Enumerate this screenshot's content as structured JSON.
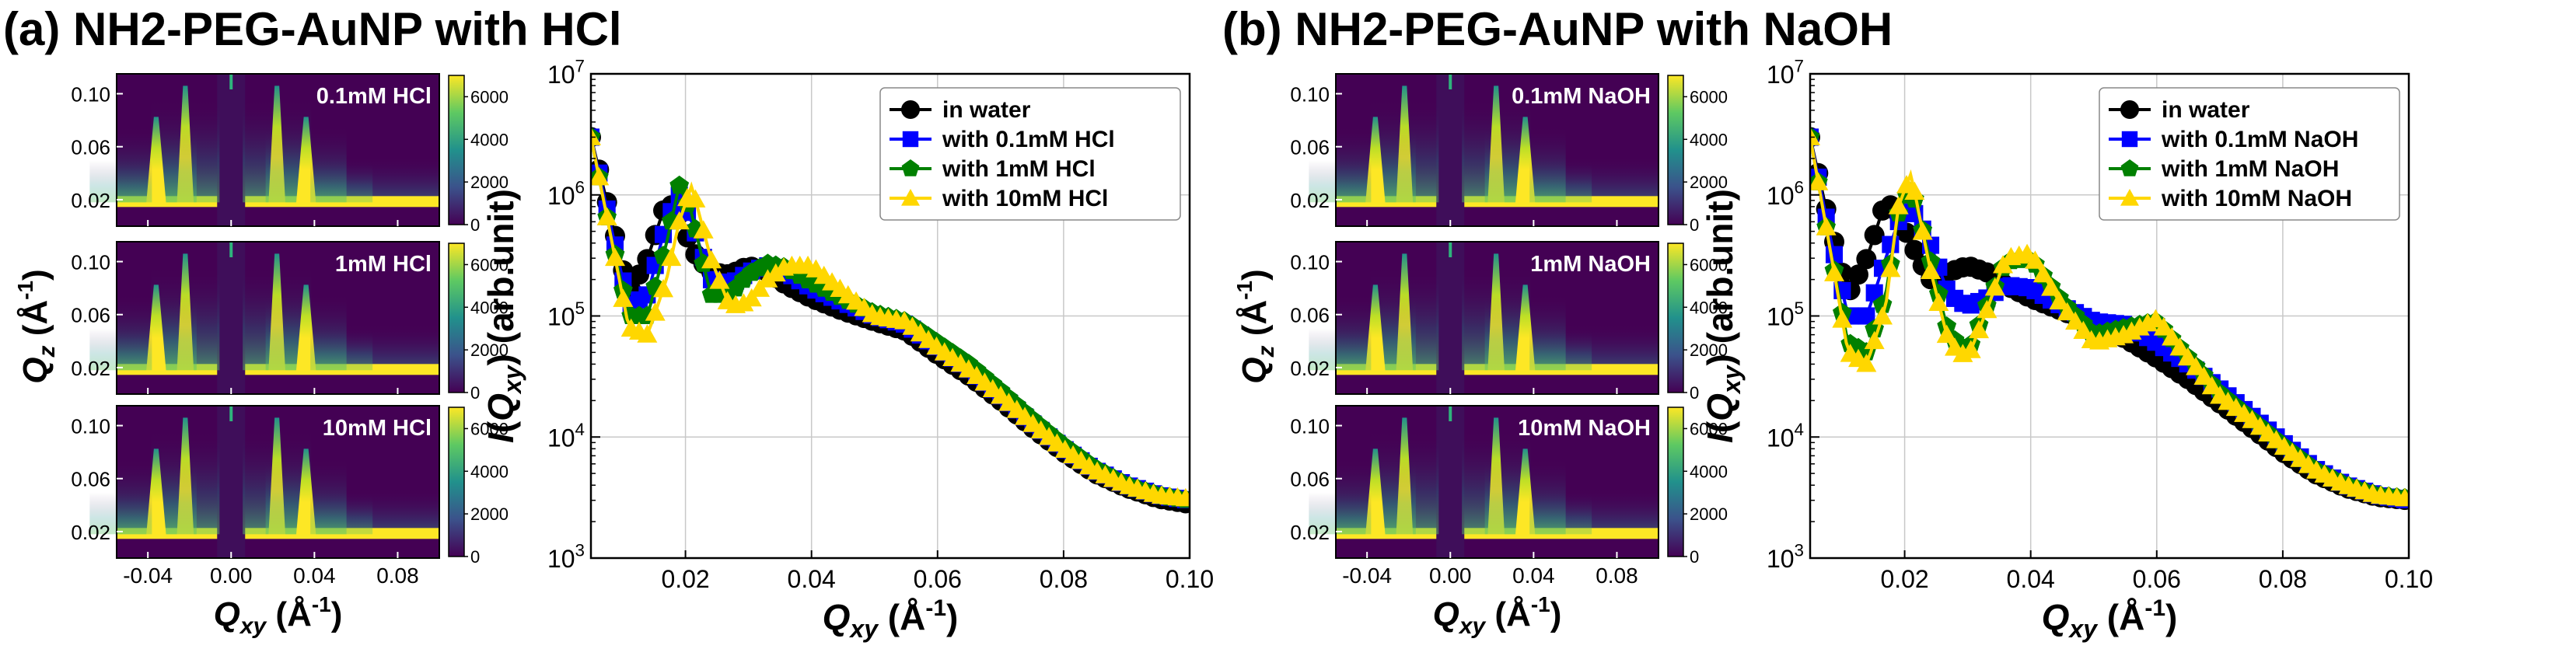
{
  "chart_data": [
    {
      "panel": "a",
      "title": "(a) NH2-PEG-AuNP with HCl",
      "maps": {
        "type": "heatmap",
        "xlabel": "Q_xy (Å^-1)",
        "ylabel": "Q_z (Å^-1)",
        "x_range": [
          -0.055,
          0.1
        ],
        "y_range": [
          0.0,
          0.115
        ],
        "x_ticks": [
          "-0.04",
          "0.00",
          "0.04",
          "0.08"
        ],
        "y_ticks": [
          "0.02",
          "0.06",
          "0.10"
        ],
        "colorbar_ticks": [
          "0",
          "2000",
          "4000",
          "6000"
        ],
        "colorbar_range": [
          0,
          7000
        ],
        "peaks_q": [
          0.022,
          0.036,
          0.053
        ],
        "labels": [
          "0.1mM HCl",
          "1mM HCl",
          "10mM HCl"
        ]
      },
      "plot": {
        "type": "line",
        "xlabel": "Q_xy (Å^-1)",
        "ylabel": "I(Q_xy) (arb.unit)",
        "xlim": [
          0.005,
          0.1
        ],
        "ylim": [
          1000,
          10000000
        ],
        "x_ticks": [
          "0.02",
          "0.04",
          "0.06",
          "0.08",
          "0.10"
        ],
        "y_ticks": [
          "10^3",
          "10^4",
          "10^5",
          "10^6",
          "10^7"
        ],
        "legend": "top-right",
        "series": [
          {
            "name": "in water",
            "color": "#000000",
            "marker": "circle",
            "x": [
              0.005,
              0.008,
              0.011,
              0.014,
              0.017,
              0.019,
              0.021,
              0.024,
              0.027,
              0.03,
              0.033,
              0.036,
              0.04,
              0.045,
              0.05,
              0.055,
              0.06,
              0.065,
              0.07,
              0.075,
              0.08,
              0.085,
              0.09,
              0.095,
              0.1
            ],
            "y": [
              3000000,
              700000,
              150000,
              300000,
              900000,
              700000,
              350000,
              230000,
              220000,
              260000,
              230000,
              180000,
              140000,
              110000,
              90000,
              75000,
              48000,
              32000,
              20000,
              12000,
              7500,
              5000,
              3800,
              3100,
              2800
            ]
          },
          {
            "name": "with 0.1mM HCl",
            "color": "#0000ff",
            "marker": "square",
            "x": [
              0.005,
              0.008,
              0.011,
              0.014,
              0.017,
              0.019,
              0.021,
              0.024,
              0.027,
              0.03,
              0.033,
              0.036,
              0.04,
              0.045,
              0.05,
              0.055,
              0.06,
              0.065,
              0.07,
              0.075,
              0.08,
              0.085,
              0.09,
              0.095,
              0.1
            ],
            "y": [
              3000000,
              600000,
              120000,
              150000,
              600000,
              1000000,
              600000,
              200000,
              180000,
              230000,
              260000,
              230000,
              170000,
              130000,
              100000,
              85000,
              55000,
              36000,
              22000,
              13000,
              8000,
              5300,
              4000,
              3300,
              3000
            ]
          },
          {
            "name": "with 1mM HCl",
            "color": "#008000",
            "marker": "pentagon",
            "x": [
              0.005,
              0.008,
              0.011,
              0.014,
              0.017,
              0.019,
              0.021,
              0.024,
              0.027,
              0.03,
              0.033,
              0.036,
              0.04,
              0.045,
              0.05,
              0.055,
              0.06,
              0.065,
              0.07,
              0.075,
              0.08,
              0.085,
              0.09,
              0.095,
              0.1
            ],
            "y": [
              3000000,
              500000,
              100000,
              100000,
              400000,
              1200000,
              700000,
              150000,
              150000,
              220000,
              270000,
              250000,
              190000,
              140000,
              105000,
              90000,
              60000,
              40000,
              24000,
              14000,
              8500,
              5500,
              4000,
              3300,
              3000
            ]
          },
          {
            "name": "with 10mM HCl",
            "color": "#ffd700",
            "marker": "triangle",
            "x": [
              0.005,
              0.008,
              0.011,
              0.014,
              0.017,
              0.019,
              0.021,
              0.024,
              0.027,
              0.03,
              0.033,
              0.036,
              0.04,
              0.045,
              0.05,
              0.055,
              0.06,
              0.065,
              0.07,
              0.075,
              0.08,
              0.085,
              0.09,
              0.095,
              0.1
            ],
            "y": [
              3000000,
              500000,
              80000,
              70000,
              200000,
              600000,
              1200000,
              300000,
              120000,
              130000,
              200000,
              260000,
              260000,
              160000,
              100000,
              90000,
              55000,
              36000,
              22000,
              13000,
              8000,
              5300,
              4000,
              3300,
              3100
            ]
          }
        ]
      }
    },
    {
      "panel": "b",
      "title": "(b) NH2-PEG-AuNP with NaOH",
      "maps": {
        "type": "heatmap",
        "xlabel": "Q_xy (Å^-1)",
        "ylabel": "Q_z (Å^-1)",
        "x_range": [
          -0.055,
          0.1
        ],
        "y_range": [
          0.0,
          0.115
        ],
        "x_ticks": [
          "-0.04",
          "0.00",
          "0.04",
          "0.08"
        ],
        "y_ticks": [
          "0.02",
          "0.06",
          "0.10"
        ],
        "colorbar_ticks": [
          "0",
          "2000",
          "4000",
          "6000"
        ],
        "colorbar_range": [
          0,
          7000
        ],
        "peaks_q": [
          0.022,
          0.036,
          0.053
        ],
        "labels": [
          "0.1mM NaOH",
          "1mM NaOH",
          "10mM NaOH"
        ]
      },
      "plot": {
        "type": "line",
        "xlabel": "Q_xy (Å^-1)",
        "ylabel": "I(Q_xy) (arb.unit)",
        "xlim": [
          0.005,
          0.1
        ],
        "ylim": [
          1000,
          10000000
        ],
        "x_ticks": [
          "0.02",
          "0.04",
          "0.06",
          "0.08",
          "0.10"
        ],
        "y_ticks": [
          "10^3",
          "10^4",
          "10^5",
          "10^6",
          "10^7"
        ],
        "legend": "top-right",
        "series": [
          {
            "name": "in water",
            "color": "#000000",
            "marker": "circle",
            "x": [
              0.005,
              0.008,
              0.011,
              0.014,
              0.017,
              0.019,
              0.021,
              0.024,
              0.027,
              0.03,
              0.033,
              0.036,
              0.04,
              0.045,
              0.05,
              0.055,
              0.06,
              0.065,
              0.07,
              0.075,
              0.08,
              0.085,
              0.09,
              0.095,
              0.1
            ],
            "y": [
              3000000,
              600000,
              150000,
              300000,
              900000,
              700000,
              400000,
              200000,
              230000,
              260000,
              230000,
              180000,
              140000,
              110000,
              85000,
              65000,
              45000,
              30000,
              19000,
              12000,
              7500,
              5000,
              3800,
              3200,
              3000
            ]
          },
          {
            "name": "with 0.1mM NaOH",
            "color": "#0000ff",
            "marker": "square",
            "x": [
              0.005,
              0.008,
              0.011,
              0.014,
              0.017,
              0.019,
              0.021,
              0.024,
              0.027,
              0.03,
              0.033,
              0.036,
              0.04,
              0.045,
              0.05,
              0.055,
              0.06,
              0.065,
              0.07,
              0.075,
              0.08,
              0.085,
              0.09,
              0.095,
              0.1
            ],
            "y": [
              3000000,
              500000,
              100000,
              100000,
              300000,
              600000,
              800000,
              400000,
              150000,
              120000,
              140000,
              180000,
              170000,
              120000,
              90000,
              85000,
              60000,
              40000,
              25000,
              15000,
              9000,
              5500,
              4000,
              3300,
              3000
            ]
          },
          {
            "name": "with 1mM NaOH",
            "color": "#008000",
            "marker": "pentagon",
            "x": [
              0.005,
              0.008,
              0.011,
              0.014,
              0.017,
              0.019,
              0.021,
              0.024,
              0.027,
              0.03,
              0.033,
              0.036,
              0.04,
              0.045,
              0.05,
              0.055,
              0.06,
              0.065,
              0.07,
              0.075,
              0.08,
              0.085,
              0.09,
              0.095,
              0.1
            ],
            "y": [
              3000000,
              400000,
              60000,
              50000,
              150000,
              700000,
              1200000,
              300000,
              70000,
              50000,
              120000,
              280000,
              300000,
              130000,
              70000,
              80000,
              90000,
              45000,
              23000,
              14000,
              8500,
              5400,
              4000,
              3300,
              3100
            ]
          },
          {
            "name": "with 10mM NaOH",
            "color": "#ffd700",
            "marker": "triangle",
            "x": [
              0.005,
              0.008,
              0.011,
              0.014,
              0.017,
              0.019,
              0.021,
              0.024,
              0.027,
              0.03,
              0.033,
              0.036,
              0.04,
              0.045,
              0.05,
              0.055,
              0.06,
              0.065,
              0.07,
              0.075,
              0.08,
              0.085,
              0.09,
              0.095,
              0.1
            ],
            "y": [
              3000000,
              400000,
              50000,
              40000,
              120000,
              800000,
              1500000,
              250000,
              60000,
              45000,
              110000,
              300000,
              330000,
              120000,
              60000,
              70000,
              95000,
              45000,
              22000,
              14000,
              8500,
              5400,
              4000,
              3300,
              3100
            ]
          }
        ]
      }
    }
  ]
}
